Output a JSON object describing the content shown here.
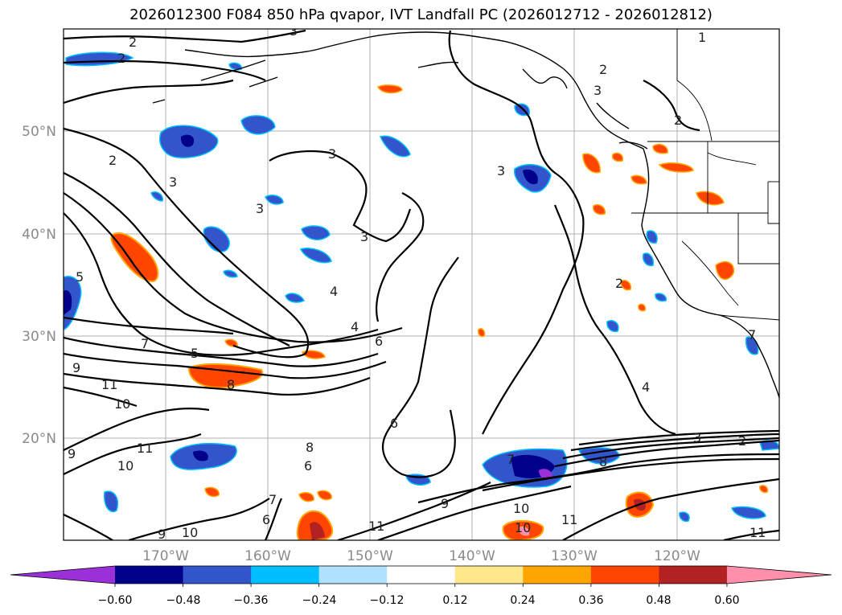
{
  "title": "2026012300 F084 850 hPa qvapor, IVT Landfall PC (2026012712 - 2026012812)",
  "map": {
    "lat_ticks": [
      "50°N",
      "40°N",
      "30°N",
      "20°N"
    ],
    "lon_ticks": [
      "170°W",
      "160°W",
      "150°W",
      "140°W",
      "130°W",
      "120°W"
    ],
    "contour_labels": [
      "2",
      "3",
      "2",
      "1",
      "2",
      "3",
      "2",
      "3",
      "3",
      "2",
      "3",
      "3",
      "3",
      "5",
      "4",
      "6",
      "7",
      "5",
      "9",
      "8",
      "11",
      "10",
      "9",
      "10",
      "11",
      "6",
      "7",
      "8",
      "6",
      "10",
      "9",
      "11",
      "10",
      "9",
      "7",
      "8",
      "3",
      "2",
      "11",
      "11",
      "2",
      "4",
      "4",
      "7",
      "10",
      "6"
    ]
  },
  "colorbar": {
    "ticks": [
      "−0.60",
      "−0.48",
      "−0.36",
      "−0.24",
      "−0.12",
      "0.12",
      "0.24",
      "0.36",
      "0.48",
      "0.60"
    ],
    "colors": [
      "#9b30d9",
      "#00008b",
      "#3355cc",
      "#00bfff",
      "#aee2ff",
      "#ffffff",
      "#ffe88a",
      "#ffa500",
      "#ff4500",
      "#b22222",
      "#ff8fab"
    ]
  }
}
